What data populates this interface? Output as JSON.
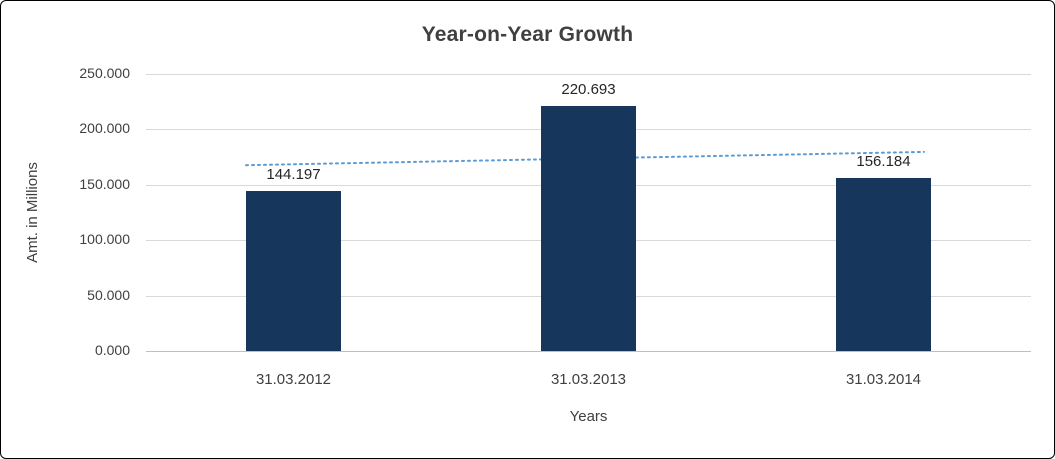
{
  "chart_data": {
    "type": "bar",
    "title": "Year-on-Year Growth",
    "xlabel": "Years",
    "ylabel": "Amt. in Millions",
    "categories": [
      "31.03.2012",
      "31.03.2013",
      "31.03.2014"
    ],
    "values": [
      144197,
      220693,
      156184
    ],
    "value_labels": [
      "144.197",
      "220.693",
      "156.184"
    ],
    "y_ticks": [
      0,
      50000,
      100000,
      150000,
      200000,
      250000
    ],
    "y_tick_labels": [
      "0.000",
      "50.000",
      "100.000",
      "150.000",
      "200.000",
      "250.000"
    ],
    "ylim": [
      0,
      250000
    ],
    "grid": true,
    "legend": false,
    "bar_color": "#16365C",
    "gridline_color": "#D9D9D9",
    "trendline": {
      "type": "linear",
      "style": "dotted",
      "color": "#5B9BD5",
      "start_value": 167700,
      "end_value": 179700
    }
  }
}
